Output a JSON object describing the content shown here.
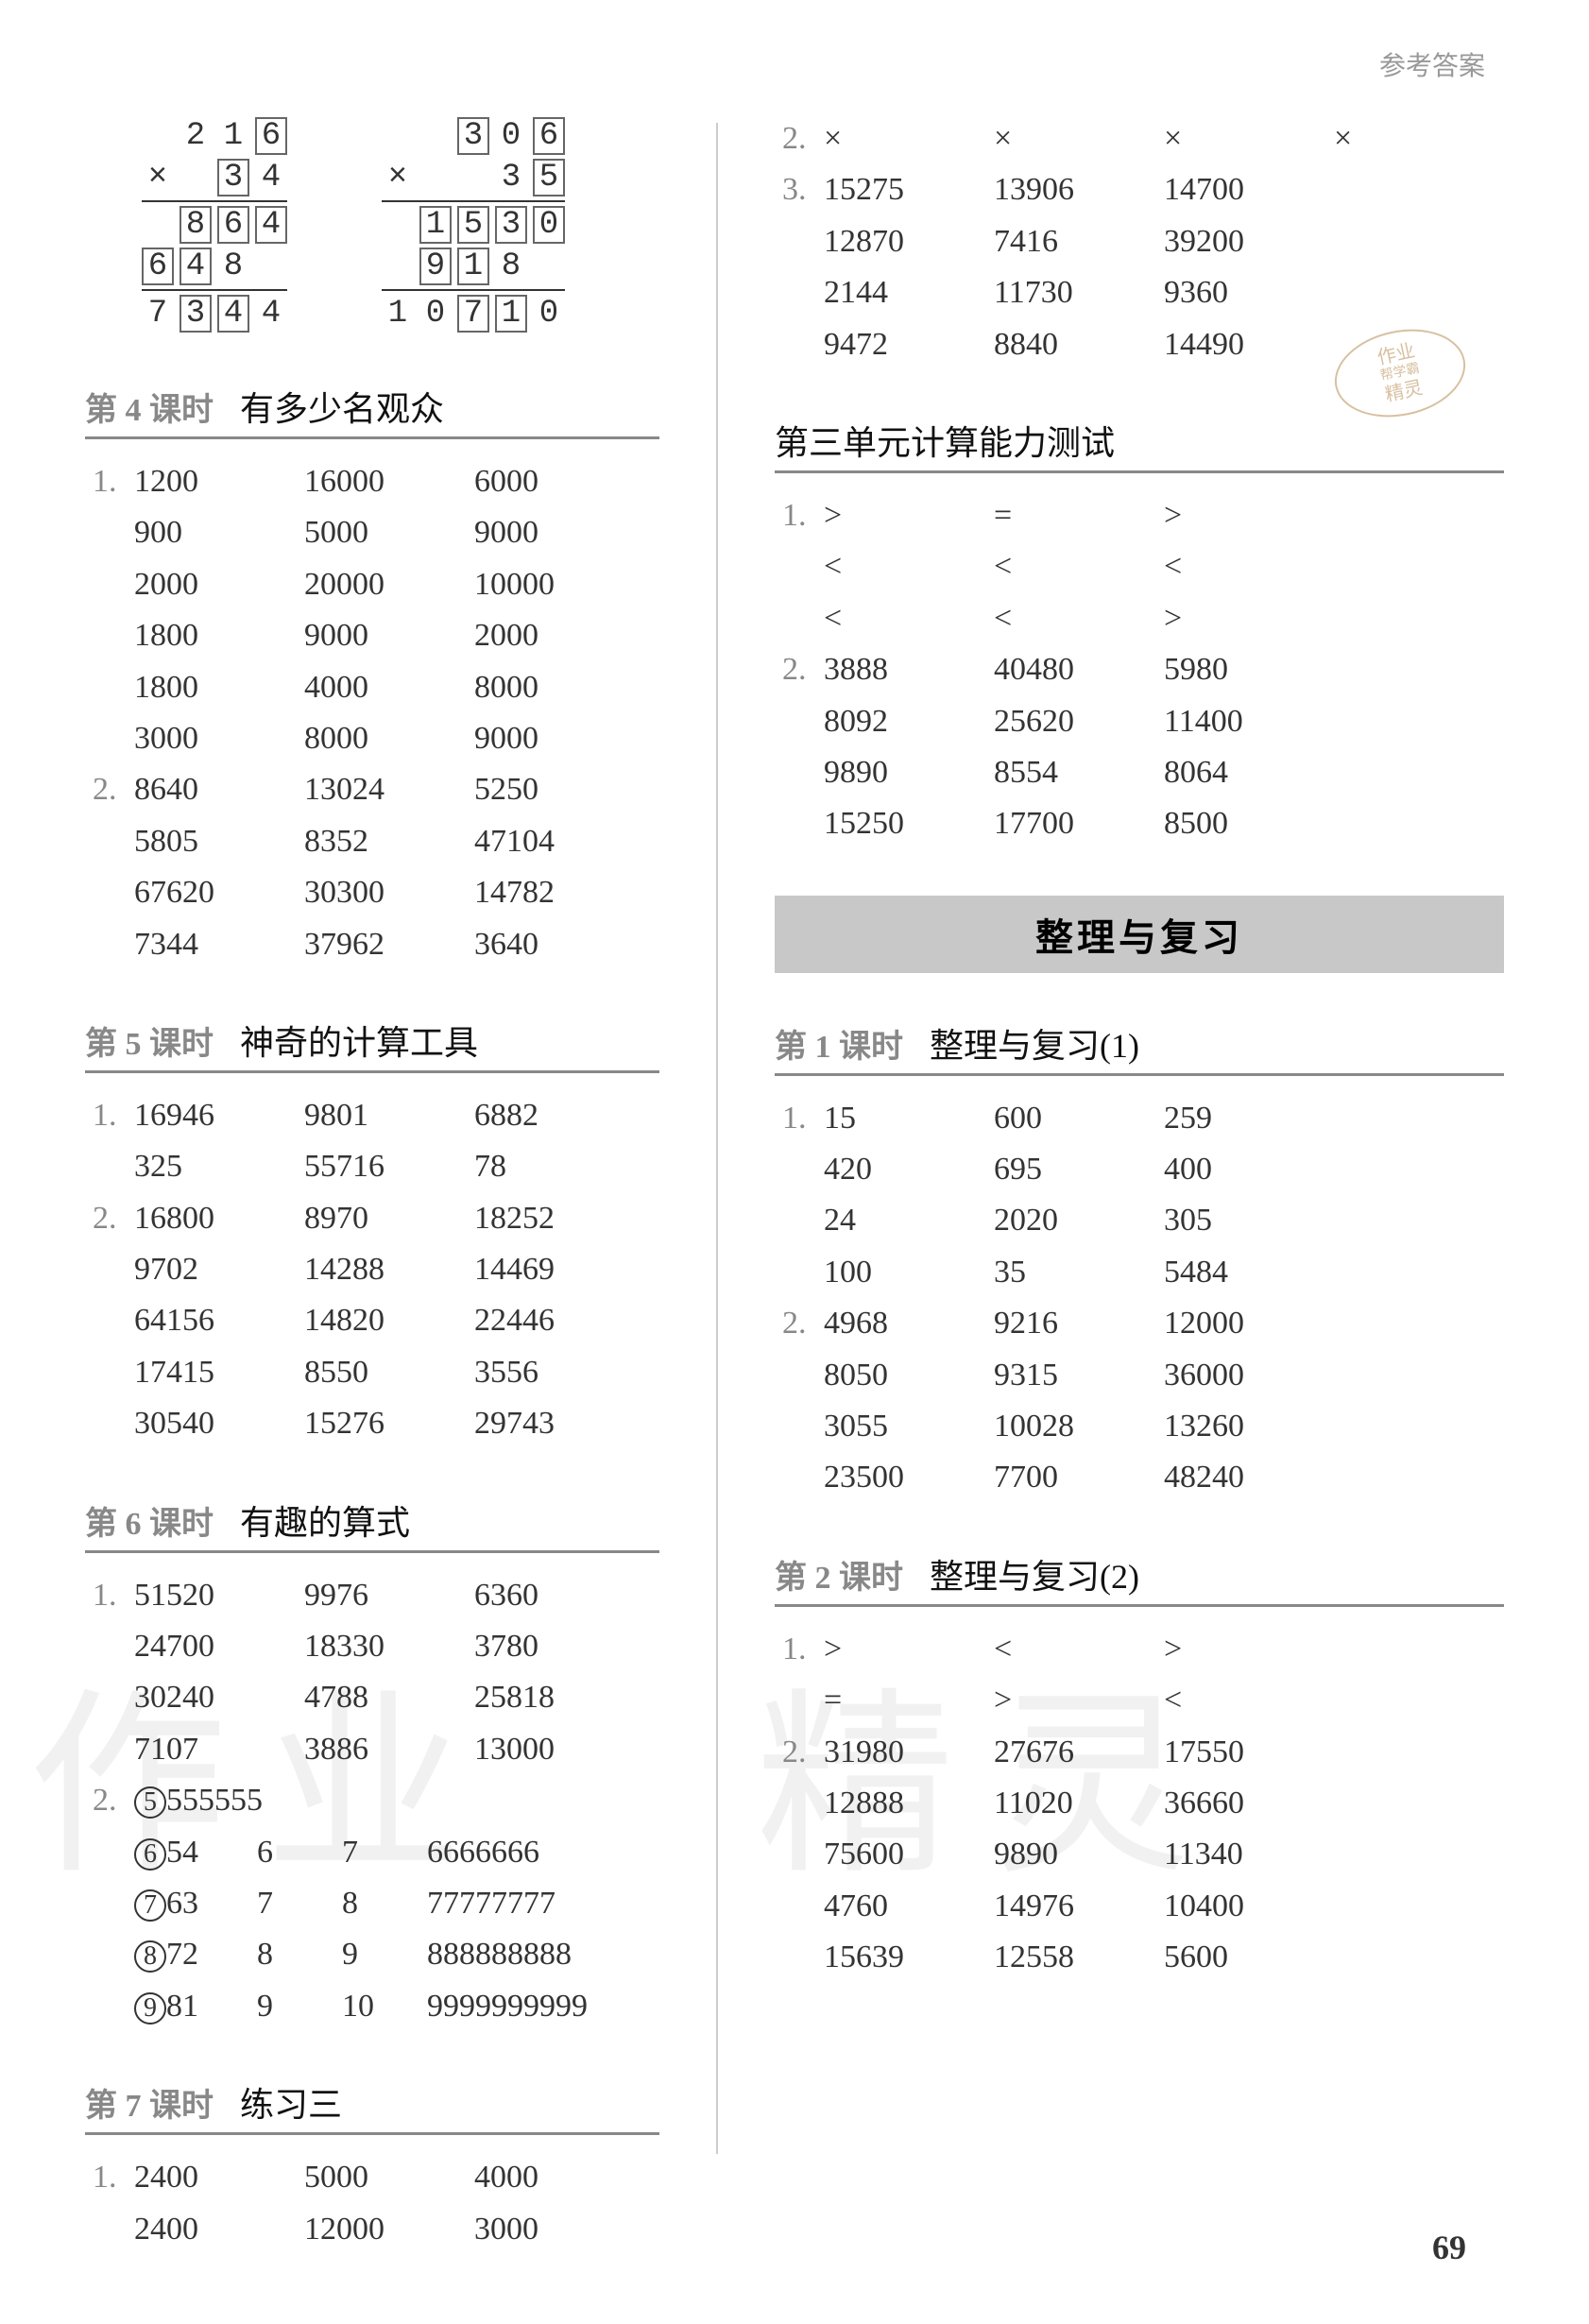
{
  "header_label": "参考答案",
  "page_number": "69",
  "stamp": {
    "line1": "作业",
    "line2": "帮学霸",
    "line3": "精灵"
  },
  "watermark_left": "作业",
  "watermark_right": "精灵",
  "mult": {
    "a": {
      "row1": [
        "",
        "2",
        "1",
        "6"
      ],
      "box1": [
        false,
        false,
        false,
        true
      ],
      "row2": [
        "×",
        "",
        "3",
        "4"
      ],
      "box2": [
        false,
        false,
        true,
        false
      ],
      "row3": [
        "",
        "8",
        "6",
        "4"
      ],
      "box3": [
        false,
        true,
        true,
        true
      ],
      "row4": [
        "6",
        "4",
        "8",
        ""
      ],
      "box4": [
        true,
        true,
        false,
        false
      ],
      "row5": [
        "7",
        "3",
        "4",
        "4"
      ],
      "box5": [
        false,
        true,
        true,
        false
      ]
    },
    "b": {
      "row1": [
        "",
        "",
        "3",
        "0",
        "6"
      ],
      "box1": [
        false,
        false,
        true,
        false,
        true
      ],
      "row2": [
        "×",
        "",
        "",
        "3",
        "5"
      ],
      "box2": [
        false,
        false,
        false,
        false,
        true
      ],
      "row3": [
        "",
        "1",
        "5",
        "3",
        "0"
      ],
      "box3": [
        false,
        true,
        true,
        true,
        true
      ],
      "row4": [
        "",
        "9",
        "1",
        "8",
        ""
      ],
      "box4": [
        false,
        true,
        true,
        false,
        false
      ],
      "row5": [
        "1",
        "0",
        "7",
        "1",
        "0"
      ],
      "box5": [
        false,
        false,
        true,
        true,
        false
      ]
    }
  },
  "left": {
    "s4": {
      "prefix": "第 4 课时",
      "title": "有多少名观众",
      "q1": [
        [
          "1200",
          "16000",
          "6000"
        ],
        [
          "900",
          "5000",
          "9000"
        ],
        [
          "2000",
          "20000",
          "10000"
        ],
        [
          "1800",
          "9000",
          "2000"
        ],
        [
          "1800",
          "4000",
          "8000"
        ],
        [
          "3000",
          "8000",
          "9000"
        ]
      ],
      "q2": [
        [
          "8640",
          "13024",
          "5250"
        ],
        [
          "5805",
          "8352",
          "47104"
        ],
        [
          "67620",
          "30300",
          "14782"
        ],
        [
          "7344",
          "37962",
          "3640"
        ]
      ]
    },
    "s5": {
      "prefix": "第 5 课时",
      "title": "神奇的计算工具",
      "q1": [
        [
          "16946",
          "9801",
          "6882"
        ],
        [
          "325",
          "55716",
          "78"
        ]
      ],
      "q2": [
        [
          "16800",
          "8970",
          "18252"
        ],
        [
          "9702",
          "14288",
          "14469"
        ],
        [
          "64156",
          "14820",
          "22446"
        ],
        [
          "17415",
          "8550",
          "3556"
        ],
        [
          "30540",
          "15276",
          "29743"
        ]
      ]
    },
    "s6": {
      "prefix": "第 6 课时",
      "title": "有趣的算式",
      "q1": [
        [
          "51520",
          "9976",
          "6360"
        ],
        [
          "24700",
          "18330",
          "3780"
        ],
        [
          "30240",
          "4788",
          "25818"
        ],
        [
          "7107",
          "3886",
          "13000"
        ]
      ],
      "q2a": {
        "circ": "5",
        "val": "555555"
      },
      "q2rows": [
        {
          "circ": "6",
          "a": "54",
          "b": "6",
          "c": "7",
          "d": "6666666"
        },
        {
          "circ": "7",
          "a": "63",
          "b": "7",
          "c": "8",
          "d": "77777777"
        },
        {
          "circ": "8",
          "a": "72",
          "b": "8",
          "c": "9",
          "d": "888888888"
        },
        {
          "circ": "9",
          "a": "81",
          "b": "9",
          "c": "10",
          "d": "9999999999"
        }
      ]
    },
    "s7": {
      "prefix": "第 7 课时",
      "title": "练习三",
      "q1": [
        [
          "2400",
          "5000",
          "4000"
        ],
        [
          "2400",
          "12000",
          "3000"
        ]
      ]
    }
  },
  "right": {
    "top": {
      "q2": [
        "×",
        "×",
        "×",
        "×"
      ],
      "q3": [
        [
          "15275",
          "13906",
          "14700"
        ],
        [
          "12870",
          "7416",
          "39200"
        ],
        [
          "2144",
          "11730",
          "9360"
        ],
        [
          "9472",
          "8840",
          "14490"
        ]
      ]
    },
    "unit3": {
      "title": "第三单元计算能力测试",
      "q1": [
        [
          ">",
          "=",
          ">"
        ],
        [
          "<",
          "<",
          "<"
        ],
        [
          "<",
          "<",
          ">"
        ]
      ],
      "q2": [
        [
          "3888",
          "40480",
          "5980"
        ],
        [
          "8092",
          "25620",
          "11400"
        ],
        [
          "9890",
          "8554",
          "8064"
        ],
        [
          "15250",
          "17700",
          "8500"
        ]
      ]
    },
    "band": "整理与复习",
    "r1": {
      "prefix": "第 1 课时",
      "title": "整理与复习(1)",
      "q1": [
        [
          "15",
          "600",
          "259"
        ],
        [
          "420",
          "695",
          "400"
        ],
        [
          "24",
          "2020",
          "305"
        ],
        [
          "100",
          "35",
          "5484"
        ]
      ],
      "q2": [
        [
          "4968",
          "9216",
          "12000"
        ],
        [
          "8050",
          "9315",
          "36000"
        ],
        [
          "3055",
          "10028",
          "13260"
        ],
        [
          "23500",
          "7700",
          "48240"
        ]
      ]
    },
    "r2": {
      "prefix": "第 2 课时",
      "title": "整理与复习(2)",
      "q1": [
        [
          ">",
          "<",
          ">"
        ],
        [
          "=",
          ">",
          "<"
        ]
      ],
      "q2": [
        [
          "31980",
          "27676",
          "17550"
        ],
        [
          "12888",
          "11020",
          "36660"
        ],
        [
          "75600",
          "9890",
          "11340"
        ],
        [
          "4760",
          "14976",
          "10400"
        ],
        [
          "15639",
          "12558",
          "5600"
        ]
      ]
    }
  }
}
